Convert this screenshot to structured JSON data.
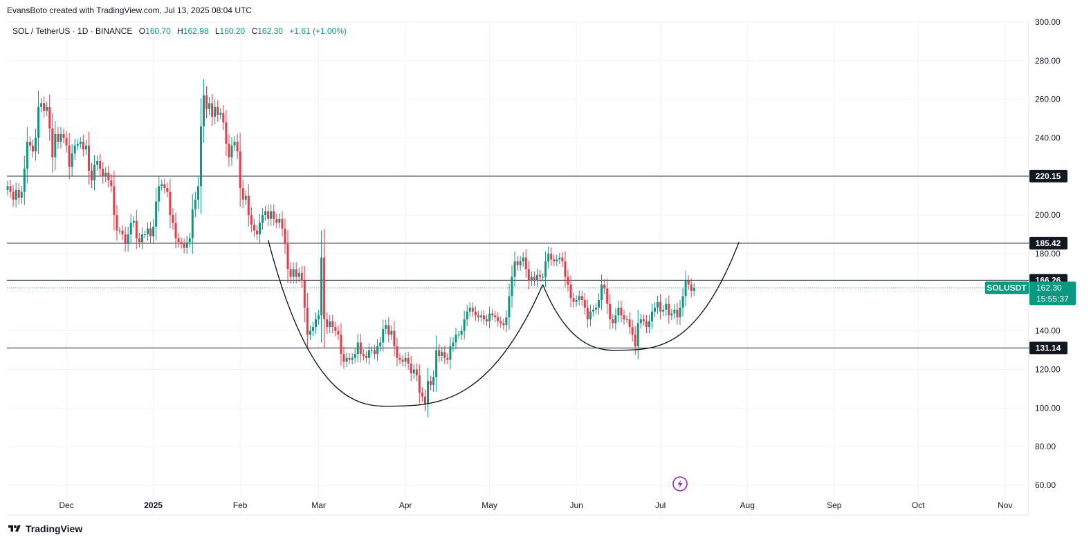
{
  "credit": "EvansBoto created with TradingView.com, Jul 13, 2025 08:04 UTC",
  "legend": {
    "symbol": "SOL / TetherUS · 1D · BINANCE",
    "o_label": "O",
    "o_value": "160.70",
    "h_label": "H",
    "h_value": "162.98",
    "l_label": "L",
    "l_value": "160.20",
    "c_label": "C",
    "c_value": "162.30",
    "change": "+1.61 (+1.00%)"
  },
  "colors": {
    "up": "#089981",
    "down": "#f23645",
    "line": "#131722",
    "badge_bg": "#131722",
    "price_bg": "#089981"
  },
  "price_badge": {
    "symbol": "SOLUSDT",
    "price": "162.30",
    "countdown": "15:55:37"
  },
  "footer": {
    "brand": "TradingView",
    "icon": "tradingview-logo-icon"
  },
  "chart_data": {
    "type": "candlestick",
    "title": "SOL / TetherUS · 1D · BINANCE",
    "ylim": [
      55,
      302
    ],
    "y_ticks": [
      "300.00",
      "280.00",
      "260.00",
      "240.00",
      "220.00",
      "200.00",
      "180.00",
      "140.00",
      "120.00",
      "100.00",
      "80.00",
      "60.00"
    ],
    "x_ticks": [
      "Dec",
      "2025",
      "Feb",
      "Mar",
      "Apr",
      "May",
      "Jun",
      "Jul",
      "Aug",
      "Sep",
      "Oct",
      "Nov"
    ],
    "x_range": [
      "2024-11-10",
      "2025-11-15"
    ],
    "levels": [
      {
        "value": 220.15,
        "label": "220.15"
      },
      {
        "value": 185.42,
        "label": "185.42"
      },
      {
        "value": 166.26,
        "label": "166.26"
      },
      {
        "value": 131.14,
        "label": "131.14"
      }
    ],
    "current_price": 162.3,
    "candles": [
      {
        "date": "2024-11-10",
        "close": 215
      },
      {
        "date": "2024-11-11",
        "close": 212
      },
      {
        "date": "2024-11-12",
        "close": 208
      },
      {
        "date": "2024-11-13",
        "close": 213
      },
      {
        "date": "2024-11-14",
        "close": 209
      },
      {
        "date": "2024-11-15",
        "close": 212
      },
      {
        "date": "2024-11-16",
        "close": 224
      },
      {
        "date": "2024-11-17",
        "close": 238
      },
      {
        "date": "2024-11-18",
        "close": 236
      },
      {
        "date": "2024-11-19",
        "close": 233
      },
      {
        "date": "2024-11-20",
        "close": 240
      },
      {
        "date": "2024-11-21",
        "close": 256
      },
      {
        "date": "2024-11-22",
        "close": 258
      },
      {
        "date": "2024-11-23",
        "close": 254
      },
      {
        "date": "2024-11-24",
        "close": 256
      },
      {
        "date": "2024-11-25",
        "close": 245
      },
      {
        "date": "2024-11-26",
        "close": 230
      },
      {
        "date": "2024-11-27",
        "close": 242
      },
      {
        "date": "2024-11-28",
        "close": 238
      },
      {
        "date": "2024-11-29",
        "close": 242
      },
      {
        "date": "2024-11-30",
        "close": 240
      },
      {
        "date": "2024-12-01",
        "close": 236
      },
      {
        "date": "2024-12-02",
        "close": 225
      },
      {
        "date": "2024-12-03",
        "close": 232
      },
      {
        "date": "2024-12-04",
        "close": 236
      },
      {
        "date": "2024-12-05",
        "close": 237
      },
      {
        "date": "2024-12-06",
        "close": 238
      },
      {
        "date": "2024-12-07",
        "close": 234
      },
      {
        "date": "2024-12-08",
        "close": 236
      },
      {
        "date": "2024-12-09",
        "close": 223
      },
      {
        "date": "2024-12-10",
        "close": 218
      },
      {
        "date": "2024-12-11",
        "close": 226
      },
      {
        "date": "2024-12-12",
        "close": 228
      },
      {
        "date": "2024-12-13",
        "close": 224
      },
      {
        "date": "2024-12-14",
        "close": 220
      },
      {
        "date": "2024-12-15",
        "close": 222
      },
      {
        "date": "2024-12-16",
        "close": 218
      },
      {
        "date": "2024-12-17",
        "close": 215
      },
      {
        "date": "2024-12-18",
        "close": 200
      },
      {
        "date": "2024-12-19",
        "close": 192
      },
      {
        "date": "2024-12-20",
        "close": 192
      },
      {
        "date": "2024-12-21",
        "close": 190
      },
      {
        "date": "2024-12-22",
        "close": 185
      },
      {
        "date": "2024-12-23",
        "close": 190
      },
      {
        "date": "2024-12-24",
        "close": 196
      },
      {
        "date": "2024-12-25",
        "close": 197
      },
      {
        "date": "2024-12-26",
        "close": 188
      },
      {
        "date": "2024-12-27",
        "close": 186
      },
      {
        "date": "2024-12-28",
        "close": 190
      },
      {
        "date": "2024-12-29",
        "close": 190
      },
      {
        "date": "2024-12-30",
        "close": 193
      },
      {
        "date": "2024-12-31",
        "close": 189
      },
      {
        "date": "2025-01-01",
        "close": 194
      },
      {
        "date": "2025-01-02",
        "close": 207
      },
      {
        "date": "2025-01-03",
        "close": 215
      },
      {
        "date": "2025-01-04",
        "close": 216
      },
      {
        "date": "2025-01-05",
        "close": 214
      },
      {
        "date": "2025-01-06",
        "close": 212
      },
      {
        "date": "2025-01-07",
        "close": 200
      },
      {
        "date": "2025-01-08",
        "close": 196
      },
      {
        "date": "2025-01-09",
        "close": 188
      },
      {
        "date": "2025-01-10",
        "close": 186
      },
      {
        "date": "2025-01-11",
        "close": 185
      },
      {
        "date": "2025-01-12",
        "close": 183
      },
      {
        "date": "2025-01-13",
        "close": 186
      },
      {
        "date": "2025-01-14",
        "close": 188
      },
      {
        "date": "2025-01-15",
        "close": 203
      },
      {
        "date": "2025-01-16",
        "close": 208
      },
      {
        "date": "2025-01-17",
        "close": 215
      },
      {
        "date": "2025-01-18",
        "close": 246
      },
      {
        "date": "2025-01-19",
        "close": 262
      },
      {
        "date": "2025-01-20",
        "close": 255
      },
      {
        "date": "2025-01-21",
        "close": 258
      },
      {
        "date": "2025-01-22",
        "close": 251
      },
      {
        "date": "2025-01-23",
        "close": 256
      },
      {
        "date": "2025-01-24",
        "close": 252
      },
      {
        "date": "2025-01-25",
        "close": 253
      },
      {
        "date": "2025-01-26",
        "close": 248
      },
      {
        "date": "2025-01-27",
        "close": 237
      },
      {
        "date": "2025-01-28",
        "close": 230
      },
      {
        "date": "2025-01-29",
        "close": 236
      },
      {
        "date": "2025-01-30",
        "close": 238
      },
      {
        "date": "2025-01-31",
        "close": 233
      },
      {
        "date": "2025-02-01",
        "close": 214
      },
      {
        "date": "2025-02-02",
        "close": 208
      },
      {
        "date": "2025-02-03",
        "close": 210
      },
      {
        "date": "2025-02-04",
        "close": 200
      },
      {
        "date": "2025-02-05",
        "close": 195
      },
      {
        "date": "2025-02-06",
        "close": 192
      },
      {
        "date": "2025-02-07",
        "close": 190
      },
      {
        "date": "2025-02-08",
        "close": 196
      },
      {
        "date": "2025-02-09",
        "close": 200
      },
      {
        "date": "2025-02-10",
        "close": 202
      },
      {
        "date": "2025-02-11",
        "close": 198
      },
      {
        "date": "2025-02-12",
        "close": 202
      },
      {
        "date": "2025-02-13",
        "close": 198
      },
      {
        "date": "2025-02-14",
        "close": 196
      },
      {
        "date": "2025-02-15",
        "close": 198
      },
      {
        "date": "2025-02-16",
        "close": 193
      },
      {
        "date": "2025-02-17",
        "close": 185
      },
      {
        "date": "2025-02-18",
        "close": 172
      },
      {
        "date": "2025-02-19",
        "close": 168
      },
      {
        "date": "2025-02-20",
        "close": 172
      },
      {
        "date": "2025-02-21",
        "close": 168
      },
      {
        "date": "2025-02-22",
        "close": 170
      },
      {
        "date": "2025-02-23",
        "close": 166
      },
      {
        "date": "2025-02-24",
        "close": 152
      },
      {
        "date": "2025-02-25",
        "close": 138
      },
      {
        "date": "2025-02-26",
        "close": 140
      },
      {
        "date": "2025-02-27",
        "close": 142
      },
      {
        "date": "2025-02-28",
        "close": 146
      },
      {
        "date": "2025-03-01",
        "close": 148
      },
      {
        "date": "2025-03-02",
        "close": 178
      },
      {
        "date": "2025-03-03",
        "close": 146
      },
      {
        "date": "2025-03-04",
        "close": 142
      },
      {
        "date": "2025-03-05",
        "close": 145
      },
      {
        "date": "2025-03-06",
        "close": 142
      },
      {
        "date": "2025-03-07",
        "close": 140
      },
      {
        "date": "2025-03-08",
        "close": 138
      },
      {
        "date": "2025-03-09",
        "close": 128
      },
      {
        "date": "2025-03-10",
        "close": 124
      },
      {
        "date": "2025-03-11",
        "close": 126
      },
      {
        "date": "2025-03-12",
        "close": 125
      },
      {
        "date": "2025-03-13",
        "close": 126
      },
      {
        "date": "2025-03-14",
        "close": 128
      },
      {
        "date": "2025-03-15",
        "close": 134
      },
      {
        "date": "2025-03-16",
        "close": 128
      },
      {
        "date": "2025-03-17",
        "close": 127
      },
      {
        "date": "2025-03-18",
        "close": 126
      },
      {
        "date": "2025-03-19",
        "close": 130
      },
      {
        "date": "2025-03-20",
        "close": 130
      },
      {
        "date": "2025-03-21",
        "close": 128
      },
      {
        "date": "2025-03-22",
        "close": 132
      },
      {
        "date": "2025-03-23",
        "close": 134
      },
      {
        "date": "2025-03-24",
        "close": 141
      },
      {
        "date": "2025-03-25",
        "close": 143
      },
      {
        "date": "2025-03-26",
        "close": 138
      },
      {
        "date": "2025-03-27",
        "close": 140
      },
      {
        "date": "2025-03-28",
        "close": 132
      },
      {
        "date": "2025-03-29",
        "close": 126
      },
      {
        "date": "2025-03-30",
        "close": 125
      },
      {
        "date": "2025-03-31",
        "close": 124
      },
      {
        "date": "2025-04-01",
        "close": 126
      },
      {
        "date": "2025-04-02",
        "close": 123
      },
      {
        "date": "2025-04-03",
        "close": 118
      },
      {
        "date": "2025-04-04",
        "close": 120
      },
      {
        "date": "2025-04-05",
        "close": 117
      },
      {
        "date": "2025-04-06",
        "close": 108
      },
      {
        "date": "2025-04-07",
        "close": 106
      },
      {
        "date": "2025-04-08",
        "close": 102
      },
      {
        "date": "2025-04-09",
        "close": 114
      },
      {
        "date": "2025-04-10",
        "close": 112
      },
      {
        "date": "2025-04-11",
        "close": 116
      },
      {
        "date": "2025-04-12",
        "close": 130
      },
      {
        "date": "2025-04-13",
        "close": 127
      },
      {
        "date": "2025-04-14",
        "close": 129
      },
      {
        "date": "2025-04-15",
        "close": 126
      },
      {
        "date": "2025-04-16",
        "close": 125
      },
      {
        "date": "2025-04-17",
        "close": 132
      },
      {
        "date": "2025-04-18",
        "close": 134
      },
      {
        "date": "2025-04-19",
        "close": 138
      },
      {
        "date": "2025-04-20",
        "close": 138
      },
      {
        "date": "2025-04-21",
        "close": 140
      },
      {
        "date": "2025-04-22",
        "close": 146
      },
      {
        "date": "2025-04-23",
        "close": 150
      },
      {
        "date": "2025-04-24",
        "close": 152
      },
      {
        "date": "2025-04-25",
        "close": 150
      },
      {
        "date": "2025-04-26",
        "close": 148
      },
      {
        "date": "2025-04-27",
        "close": 147
      },
      {
        "date": "2025-04-28",
        "close": 148
      },
      {
        "date": "2025-04-29",
        "close": 146
      },
      {
        "date": "2025-04-30",
        "close": 145
      },
      {
        "date": "2025-05-01",
        "close": 149
      },
      {
        "date": "2025-05-02",
        "close": 148
      },
      {
        "date": "2025-05-03",
        "close": 147
      },
      {
        "date": "2025-05-04",
        "close": 145
      },
      {
        "date": "2025-05-05",
        "close": 144
      },
      {
        "date": "2025-05-06",
        "close": 143
      },
      {
        "date": "2025-05-07",
        "close": 147
      },
      {
        "date": "2025-05-08",
        "close": 158
      },
      {
        "date": "2025-05-09",
        "close": 168
      },
      {
        "date": "2025-05-10",
        "close": 176
      },
      {
        "date": "2025-05-11",
        "close": 174
      },
      {
        "date": "2025-05-12",
        "close": 176
      },
      {
        "date": "2025-05-13",
        "close": 178
      },
      {
        "date": "2025-05-14",
        "close": 172
      },
      {
        "date": "2025-05-15",
        "close": 166
      },
      {
        "date": "2025-05-16",
        "close": 168
      },
      {
        "date": "2025-05-17",
        "close": 166
      },
      {
        "date": "2025-05-18",
        "close": 169
      },
      {
        "date": "2025-05-19",
        "close": 168
      },
      {
        "date": "2025-05-20",
        "close": 168
      },
      {
        "date": "2025-05-21",
        "close": 176
      },
      {
        "date": "2025-05-22",
        "close": 180
      },
      {
        "date": "2025-05-23",
        "close": 177
      },
      {
        "date": "2025-05-24",
        "close": 176
      },
      {
        "date": "2025-05-25",
        "close": 177
      },
      {
        "date": "2025-05-26",
        "close": 178
      },
      {
        "date": "2025-05-27",
        "close": 176
      },
      {
        "date": "2025-05-28",
        "close": 168
      },
      {
        "date": "2025-05-29",
        "close": 164
      },
      {
        "date": "2025-05-30",
        "close": 157
      },
      {
        "date": "2025-05-31",
        "close": 155
      },
      {
        "date": "2025-06-01",
        "close": 156
      },
      {
        "date": "2025-06-02",
        "close": 158
      },
      {
        "date": "2025-06-03",
        "close": 156
      },
      {
        "date": "2025-06-04",
        "close": 152
      },
      {
        "date": "2025-06-05",
        "close": 146
      },
      {
        "date": "2025-06-06",
        "close": 150
      },
      {
        "date": "2025-06-07",
        "close": 151
      },
      {
        "date": "2025-06-08",
        "close": 152
      },
      {
        "date": "2025-06-09",
        "close": 156
      },
      {
        "date": "2025-06-10",
        "close": 164
      },
      {
        "date": "2025-06-11",
        "close": 162
      },
      {
        "date": "2025-06-12",
        "close": 154
      },
      {
        "date": "2025-06-13",
        "close": 146
      },
      {
        "date": "2025-06-14",
        "close": 144
      },
      {
        "date": "2025-06-15",
        "close": 148
      },
      {
        "date": "2025-06-16",
        "close": 152
      },
      {
        "date": "2025-06-17",
        "close": 148
      },
      {
        "date": "2025-06-18",
        "close": 146
      },
      {
        "date": "2025-06-19",
        "close": 146
      },
      {
        "date": "2025-06-20",
        "close": 142
      },
      {
        "date": "2025-06-21",
        "close": 138
      },
      {
        "date": "2025-06-22",
        "close": 132
      },
      {
        "date": "2025-06-23",
        "close": 144
      },
      {
        "date": "2025-06-24",
        "close": 146
      },
      {
        "date": "2025-06-25",
        "close": 145
      },
      {
        "date": "2025-06-26",
        "close": 142
      },
      {
        "date": "2025-06-27",
        "close": 145
      },
      {
        "date": "2025-06-28",
        "close": 150
      },
      {
        "date": "2025-06-29",
        "close": 152
      },
      {
        "date": "2025-06-30",
        "close": 155
      },
      {
        "date": "2025-07-01",
        "close": 150
      },
      {
        "date": "2025-07-02",
        "close": 151
      },
      {
        "date": "2025-07-03",
        "close": 154
      },
      {
        "date": "2025-07-04",
        "close": 148
      },
      {
        "date": "2025-07-05",
        "close": 149
      },
      {
        "date": "2025-07-06",
        "close": 151
      },
      {
        "date": "2025-07-07",
        "close": 147
      },
      {
        "date": "2025-07-08",
        "close": 152
      },
      {
        "date": "2025-07-09",
        "close": 158
      },
      {
        "date": "2025-07-10",
        "close": 166
      },
      {
        "date": "2025-07-11",
        "close": 164
      },
      {
        "date": "2025-07-12",
        "close": 160.7
      },
      {
        "date": "2025-07-13",
        "close": 162.3
      }
    ],
    "annotations": [
      {
        "type": "arc",
        "from": "2025-02-11",
        "bottom": "2025-03-28",
        "to": "2025-05-20",
        "from_value": 187,
        "bottom_value": 101,
        "to_value": 164
      },
      {
        "type": "arc",
        "from": "2025-05-20",
        "bottom": "2025-06-18",
        "to": "2025-07-29",
        "from_value": 164,
        "bottom_value": 130,
        "to_value": 186
      }
    ]
  }
}
